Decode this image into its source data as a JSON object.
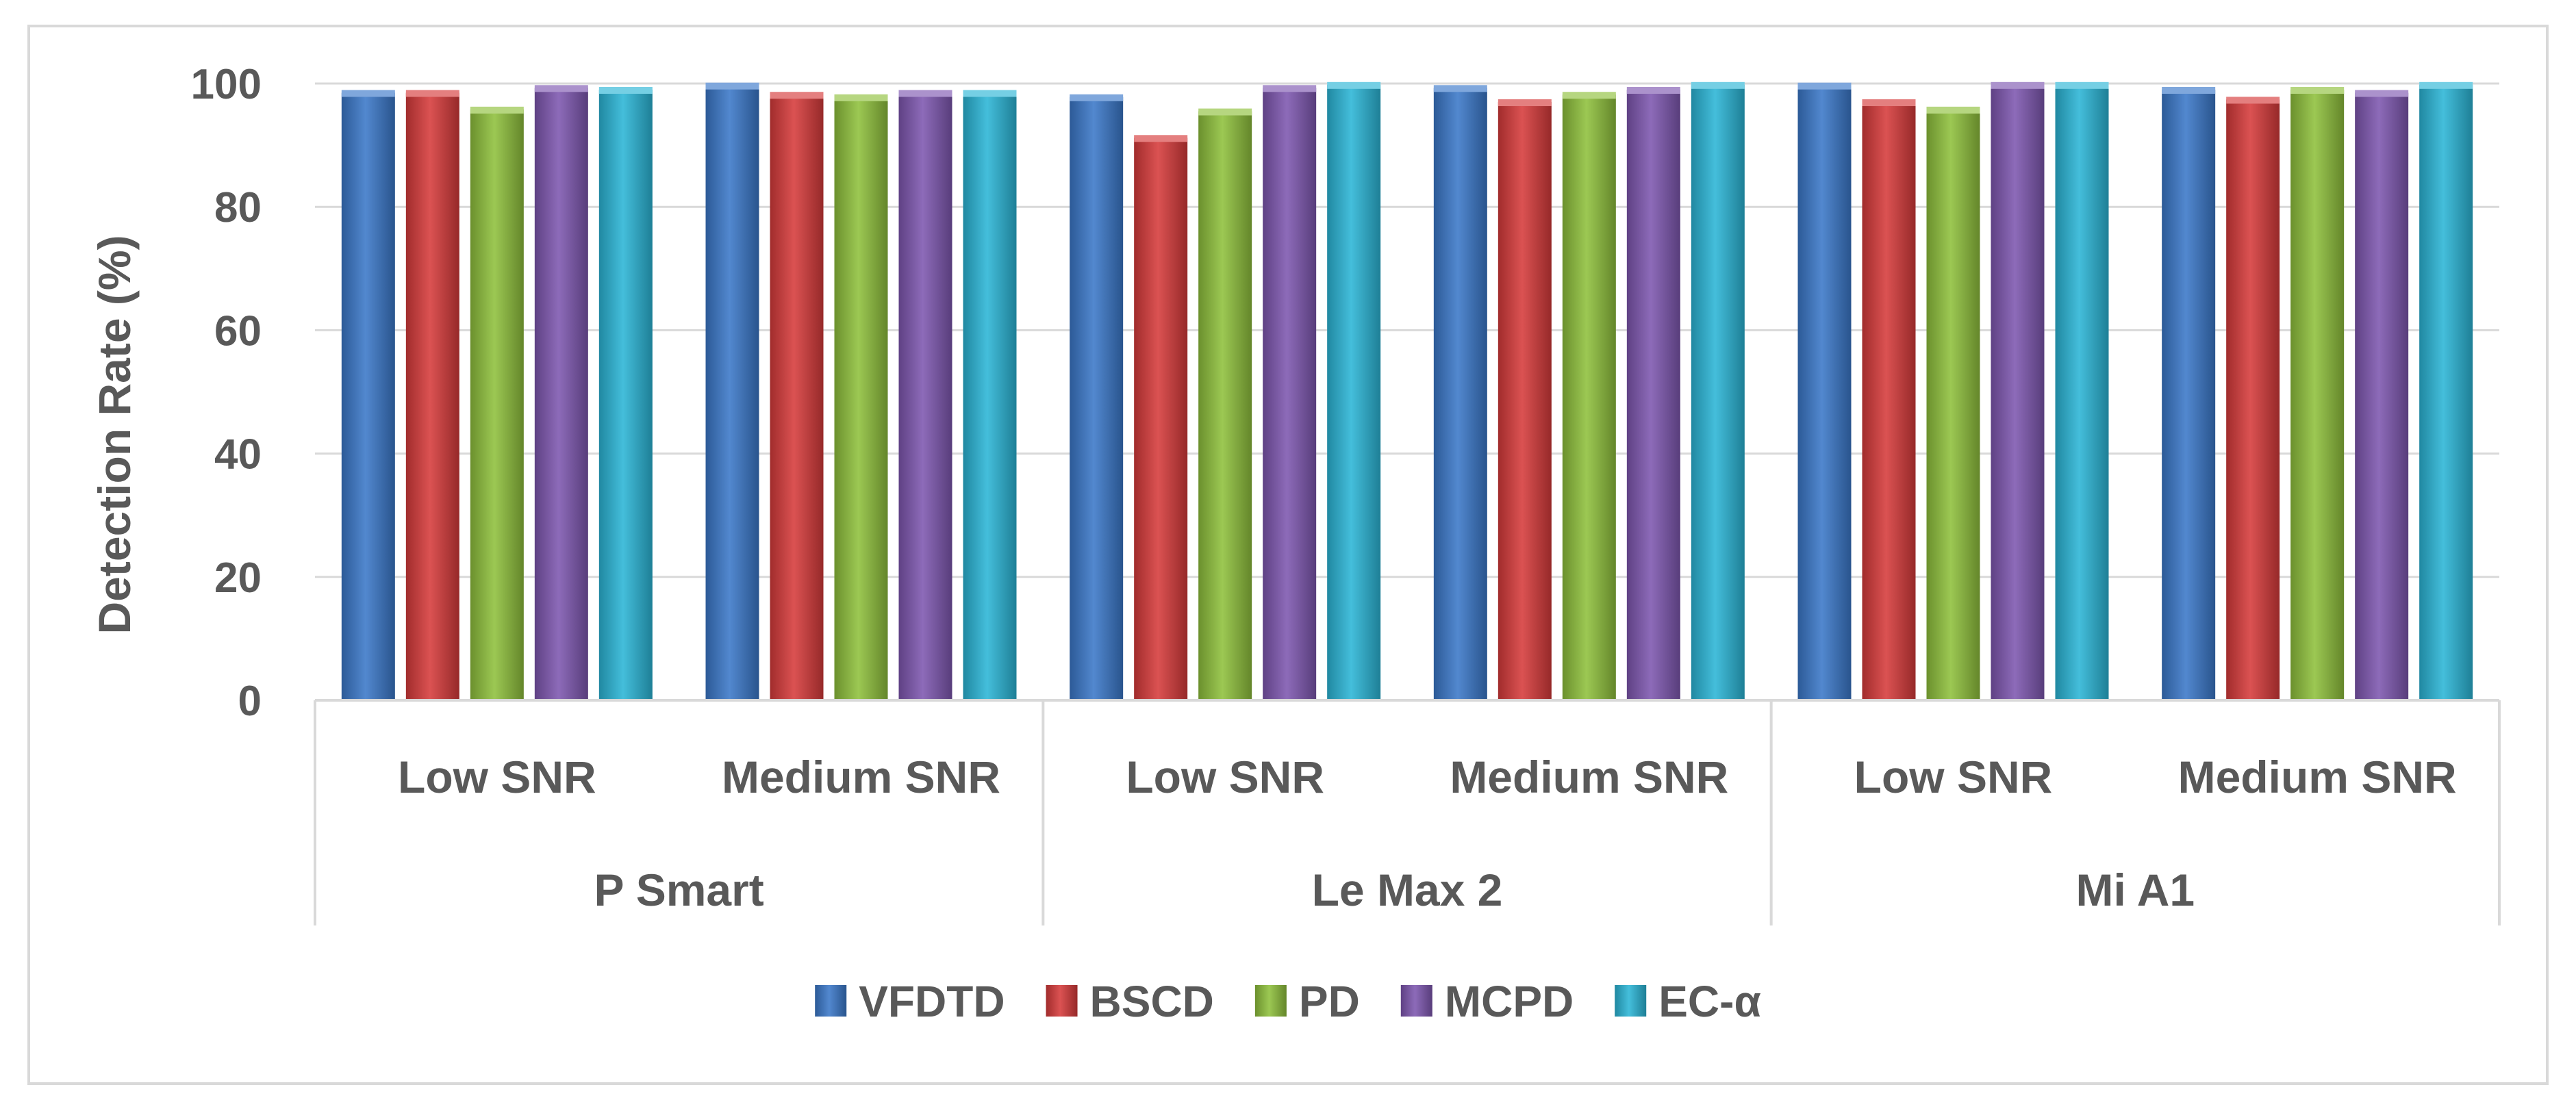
{
  "chart_data": {
    "type": "bar",
    "title": "",
    "ylabel": "Detection Rate (%)",
    "xlabel": "",
    "ylim": [
      0,
      100
    ],
    "yticks": [
      0,
      20,
      40,
      60,
      80,
      100
    ],
    "grid": true,
    "legend_position": "bottom",
    "groups": [
      {
        "name": "P Smart",
        "categories": [
          "Low SNR",
          "Medium SNR"
        ]
      },
      {
        "name": "Le Max 2",
        "categories": [
          "Low SNR",
          "Medium SNR"
        ]
      },
      {
        "name": "Mi A1",
        "categories": [
          "Low SNR",
          "Medium SNR"
        ]
      }
    ],
    "categories": [
      "P Smart / Low SNR",
      "P Smart / Medium SNR",
      "Le Max 2 / Low SNR",
      "Le Max 2 / Medium SNR",
      "Mi A1 / Low SNR",
      "Mi A1 / Medium SNR"
    ],
    "series": [
      {
        "name": "VFDTD",
        "color": "#3a78c9",
        "values": [
          98.5,
          99.7,
          97.8,
          99.3,
          99.7,
          99.0
        ]
      },
      {
        "name": "BSCD",
        "color": "#d63a3a",
        "values": [
          98.5,
          98.2,
          91.2,
          97.0,
          97.0,
          97.4
        ]
      },
      {
        "name": "PD",
        "color": "#8fc03c",
        "values": [
          95.8,
          97.8,
          95.5,
          98.2,
          95.8,
          99.0
        ]
      },
      {
        "name": "MCPD",
        "color": "#7e57b0",
        "values": [
          99.3,
          98.5,
          99.3,
          99.0,
          99.8,
          98.5
        ]
      },
      {
        "name": "EC-α",
        "color": "#2bb5d6",
        "values": [
          99.0,
          98.5,
          99.8,
          99.8,
          99.8,
          99.8
        ]
      }
    ]
  }
}
